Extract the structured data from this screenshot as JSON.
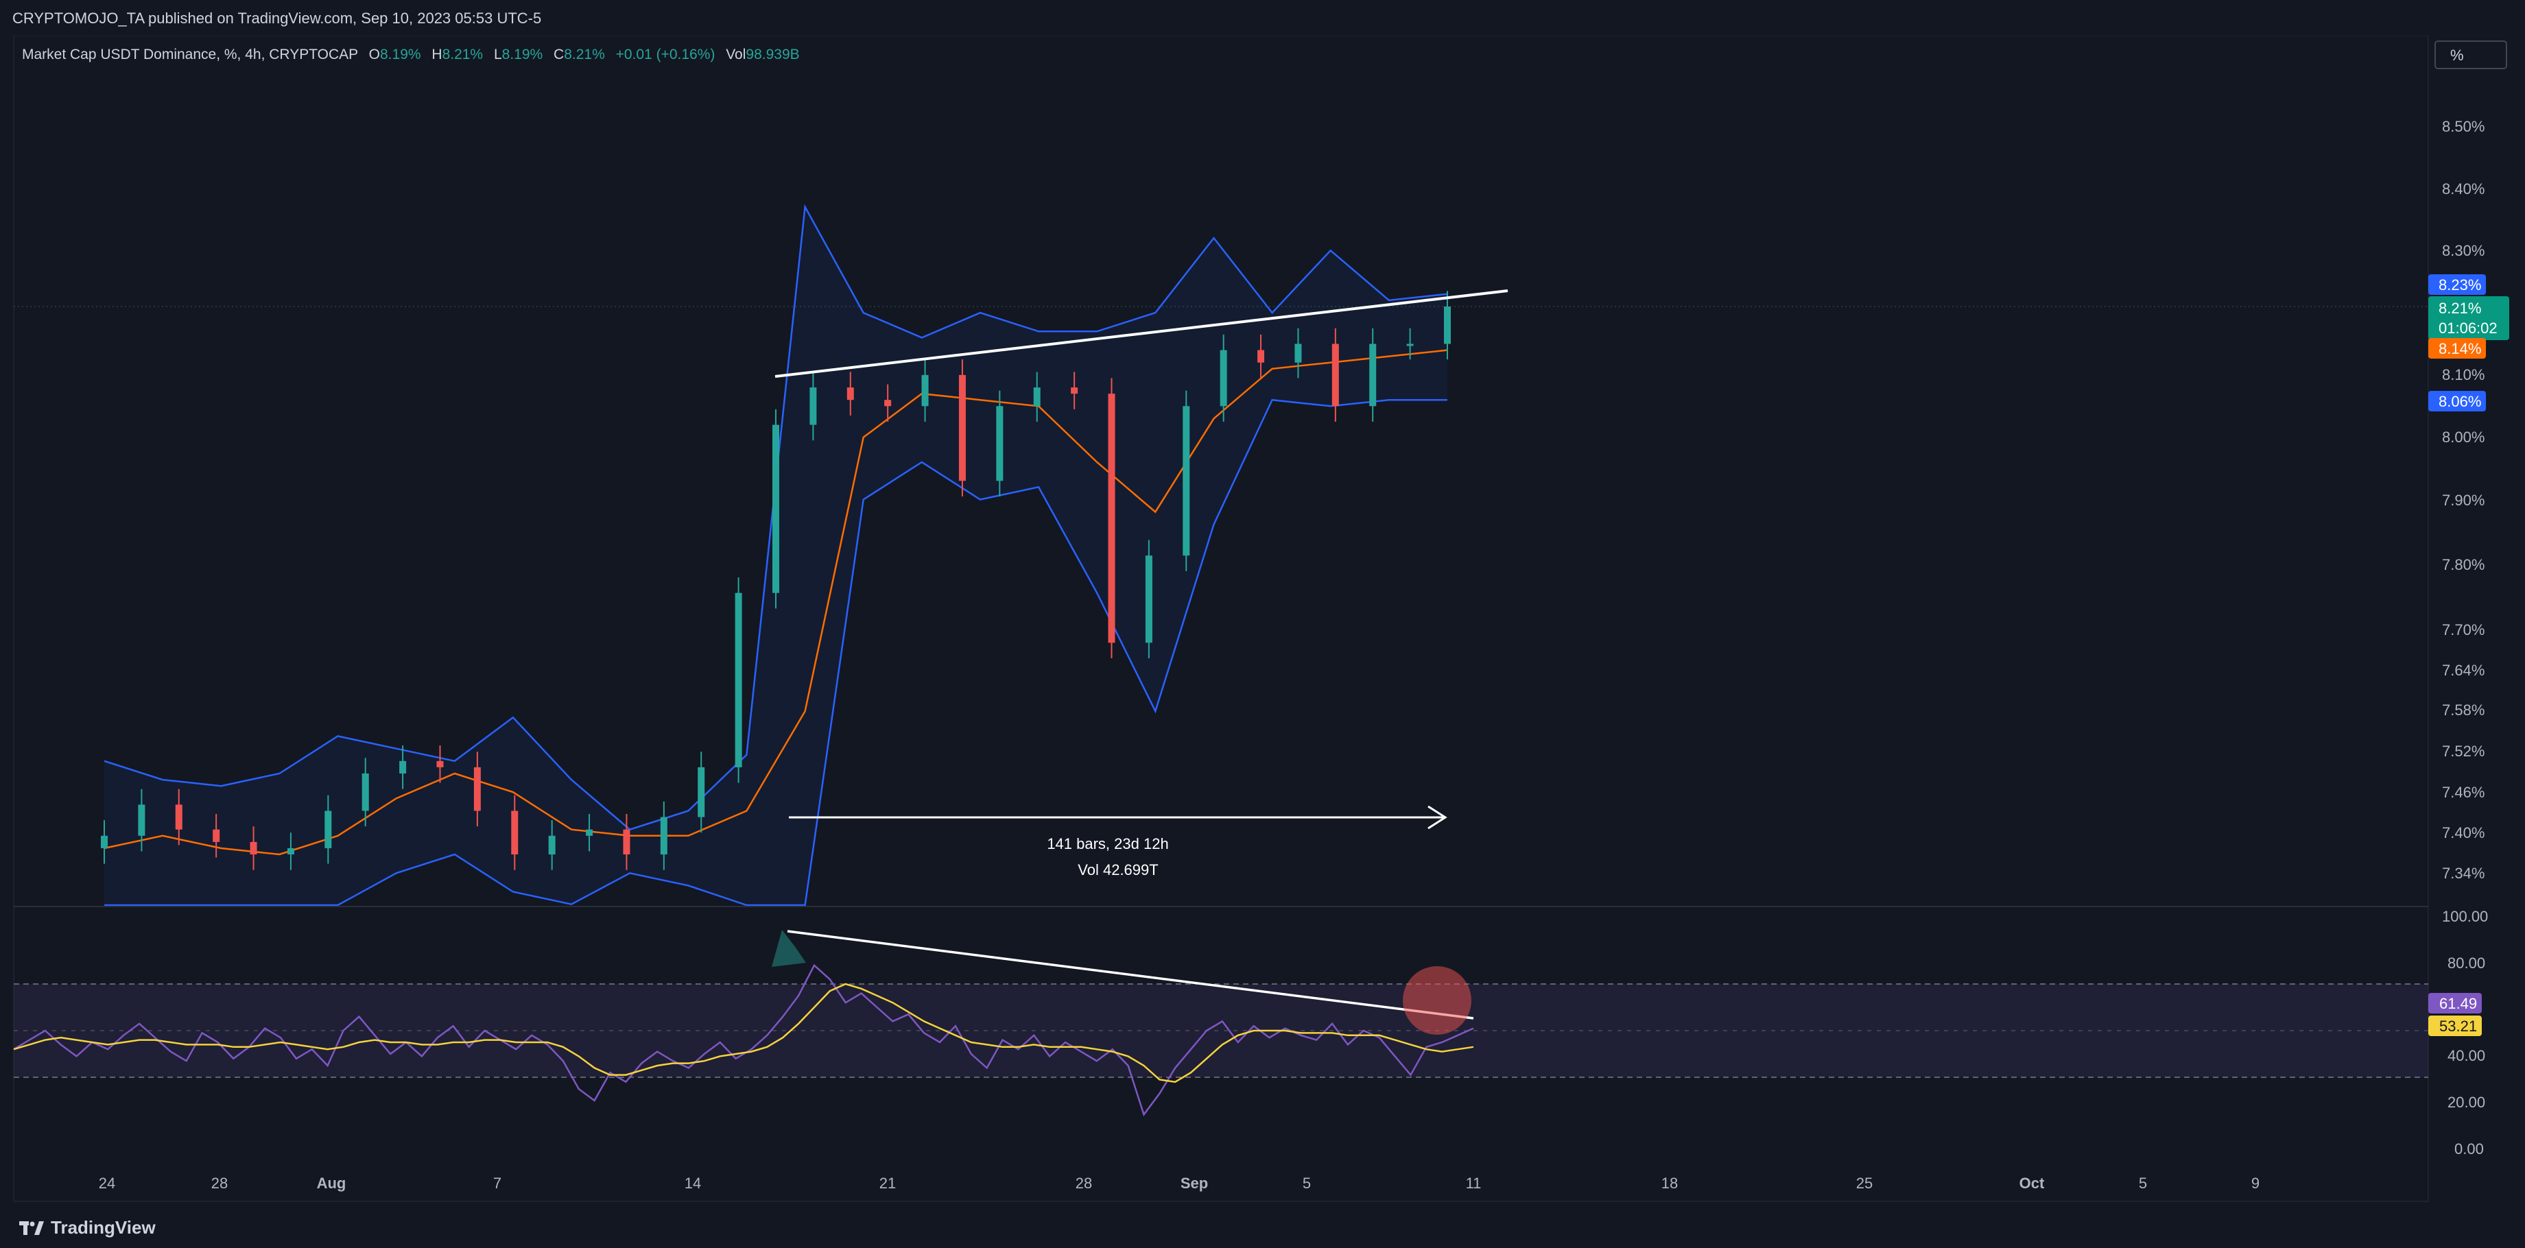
{
  "header": {
    "published": "CRYPTOMOJO_TA published on TradingView.com, Sep 10, 2023 05:53 UTC-5"
  },
  "legend": {
    "symbol": "Market Cap USDT Dominance, %, 4h, CRYPTOCAP",
    "o_label": "O",
    "o_value": "8.19%",
    "h_label": "H",
    "h_value": "8.21%",
    "l_label": "L",
    "l_value": "8.19%",
    "c_label": "C",
    "c_value": "8.21%",
    "change": "+0.01 (+0.16%)",
    "vol_label": "Vol",
    "vol_value": "98.939B"
  },
  "scale_button": "%",
  "footer": {
    "brand": "TradingView"
  },
  "colors": {
    "bg": "#131722",
    "up": "#26a69a",
    "down": "#ef5350",
    "bb": "#2962ff",
    "bb_basis": "#ff6d00",
    "rsi": "#7e57c2",
    "rsi_ma": "#f5d33d",
    "text": "#d1d4dc",
    "axis_text": "#b2b5be"
  },
  "chart_data": [
    {
      "type": "candlestick",
      "title": "Market Cap USDT Dominance, %, 4h, CRYPTOCAP",
      "ylabel": "%",
      "ylim": [
        7.3,
        8.56
      ],
      "y_ticks": [
        "8.50%",
        "8.40%",
        "8.30%",
        "8.10%",
        "8.00%",
        "7.90%",
        "7.80%",
        "7.70%",
        "7.64%",
        "7.58%",
        "7.52%",
        "7.46%",
        "7.40%",
        "7.34%"
      ],
      "x_ticks": [
        "24",
        "28",
        "Aug",
        "7",
        "14",
        "21",
        "28",
        "Sep",
        "5",
        "11",
        "18",
        "25",
        "Oct",
        "5",
        "9"
      ],
      "price_labels": {
        "bb_upper": "8.23%",
        "last": "8.21%",
        "countdown": "01:06:02",
        "bb_basis": "8.14%",
        "bb_lower": "8.06%"
      },
      "series": [
        {
          "name": "close",
          "points": [
            [
              "Jul 21",
              7.36
            ],
            [
              "Jul 23",
              7.41
            ],
            [
              "Jul 25",
              7.37
            ],
            [
              "Jul 27",
              7.35
            ],
            [
              "Jul 29",
              7.33
            ],
            [
              "Jul 31",
              7.34
            ],
            [
              "Aug 2",
              7.4
            ],
            [
              "Aug 3",
              7.46
            ],
            [
              "Aug 5",
              7.48
            ],
            [
              "Aug 7",
              7.47
            ],
            [
              "Aug 8",
              7.4
            ],
            [
              "Aug 9",
              7.33
            ],
            [
              "Aug 11",
              7.36
            ],
            [
              "Aug 13",
              7.37
            ],
            [
              "Aug 14",
              7.33
            ],
            [
              "Aug 15",
              7.39
            ],
            [
              "Aug 16",
              7.47
            ],
            [
              "Aug 17",
              7.75
            ],
            [
              "Aug 17 12h",
              8.02
            ],
            [
              "Aug 18",
              8.08
            ],
            [
              "Aug 20",
              8.06
            ],
            [
              "Aug 22",
              8.05
            ],
            [
              "Aug 23",
              8.1
            ],
            [
              "Aug 24",
              7.93
            ],
            [
              "Aug 26",
              8.05
            ],
            [
              "Aug 27",
              8.08
            ],
            [
              "Aug 28",
              8.07
            ],
            [
              "Aug 29",
              7.67
            ],
            [
              "Aug 30",
              7.81
            ],
            [
              "Aug 31",
              8.05
            ],
            [
              "Sep 2",
              8.14
            ],
            [
              "Sep 4",
              8.12
            ],
            [
              "Sep 6",
              8.15
            ],
            [
              "Sep 7",
              8.05
            ],
            [
              "Sep 8",
              8.15
            ],
            [
              "Sep 9",
              8.15
            ],
            [
              "Sep 10",
              8.21
            ]
          ]
        }
      ],
      "bollinger": {
        "upper": [
          7.48,
          7.45,
          7.44,
          7.46,
          7.52,
          7.5,
          7.48,
          7.55,
          7.45,
          7.37,
          7.4,
          7.49,
          8.37,
          8.2,
          8.16,
          8.2,
          8.17,
          8.17,
          8.2,
          8.32,
          8.2,
          8.3,
          8.22,
          8.23
        ],
        "basis": [
          7.34,
          7.36,
          7.34,
          7.33,
          7.36,
          7.42,
          7.46,
          7.43,
          7.37,
          7.36,
          7.36,
          7.4,
          7.56,
          8.0,
          8.07,
          8.06,
          8.05,
          7.96,
          7.88,
          8.03,
          8.11,
          8.12,
          8.13,
          8.14
        ],
        "lower": [
          7.22,
          7.24,
          7.23,
          7.2,
          7.22,
          7.3,
          7.33,
          7.27,
          7.25,
          7.3,
          7.28,
          7.2,
          6.8,
          7.9,
          7.96,
          7.9,
          7.92,
          7.75,
          7.56,
          7.86,
          8.06,
          8.05,
          8.06,
          8.06
        ]
      },
      "annotations": {
        "range_bars": "141 bars, 23d 12h",
        "range_vol": "Vol 42.699T",
        "trendline_start": [
          "Aug 17",
          8.09
        ],
        "trendline_end": [
          "Sep 11",
          8.24
        ]
      }
    },
    {
      "type": "line",
      "title": "RSI",
      "ylim": [
        0,
        100
      ],
      "y_ticks": [
        "100.00",
        "80.00",
        "40.00",
        "20.00",
        "0.00"
      ],
      "bands": {
        "upper": 70,
        "middle": 50,
        "lower": 30
      },
      "value_labels": {
        "rsi": "61.49",
        "rsi_ma": "53.21"
      },
      "series": [
        {
          "name": "RSI",
          "values": [
            52,
            56,
            60,
            54,
            49,
            55,
            52,
            58,
            63,
            57,
            51,
            47,
            59,
            55,
            48,
            53,
            61,
            57,
            48,
            52,
            45,
            60,
            66,
            58,
            50,
            55,
            49,
            57,
            62,
            53,
            60,
            56,
            52,
            58,
            54,
            47,
            35,
            30,
            42,
            38,
            46,
            51,
            47,
            44,
            50,
            55,
            48,
            52,
            58,
            66,
            75,
            88,
            82,
            72,
            76,
            70,
            64,
            67,
            59,
            55,
            62,
            50,
            44,
            56,
            52,
            58,
            49,
            55,
            51,
            47,
            52,
            45,
            24,
            33,
            44,
            52,
            60,
            64,
            55,
            62,
            57,
            61,
            58,
            56,
            63,
            54,
            60,
            57,
            49,
            41,
            53,
            55,
            58,
            61
          ]
        },
        {
          "name": "RSI-based MA",
          "values": [
            52,
            54,
            56,
            57,
            56,
            55,
            54,
            55,
            56,
            56,
            55,
            54,
            54,
            54,
            53,
            53,
            54,
            55,
            54,
            53,
            52,
            53,
            55,
            56,
            55,
            55,
            54,
            54,
            55,
            55,
            56,
            56,
            55,
            55,
            55,
            53,
            49,
            44,
            41,
            41,
            43,
            45,
            46,
            46,
            47,
            49,
            50,
            51,
            53,
            57,
            63,
            70,
            77,
            80,
            78,
            75,
            72,
            68,
            64,
            61,
            58,
            55,
            54,
            53,
            53,
            54,
            53,
            53,
            53,
            52,
            51,
            49,
            45,
            39,
            38,
            42,
            48,
            54,
            58,
            60,
            60,
            60,
            59,
            59,
            59,
            58,
            58,
            58,
            56,
            54,
            52,
            51,
            52,
            53
          ]
        }
      ],
      "annotations": {
        "trendline_start": [
          "Aug 17",
          93
        ],
        "trendline_end": [
          "Sep 10",
          56
        ]
      }
    }
  ]
}
